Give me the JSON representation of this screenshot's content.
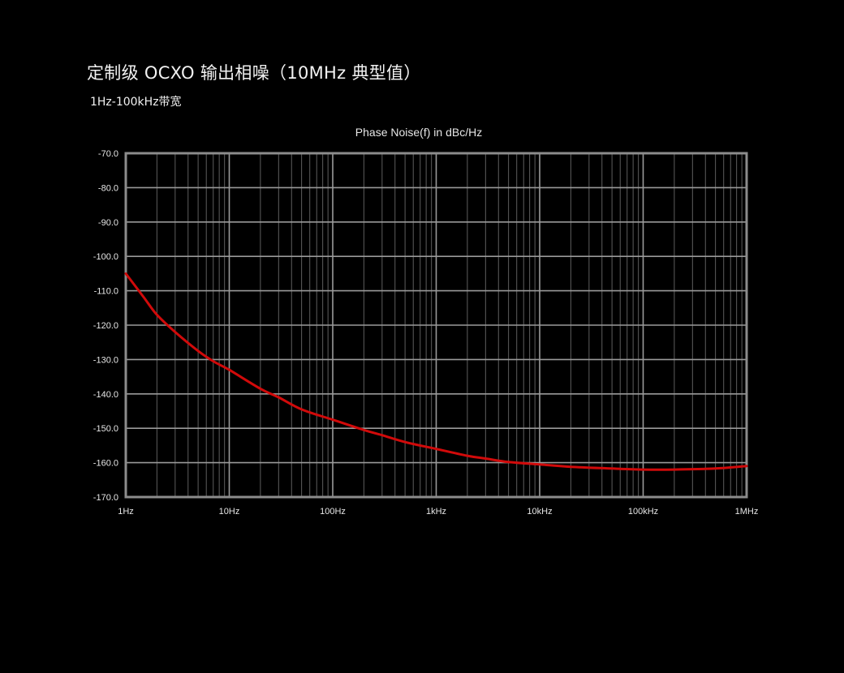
{
  "heading": "定制级 OCXO 输出相噪（10MHz 典型值）",
  "subheading": "1Hz-100kHz带宽",
  "chart_data": {
    "type": "line",
    "title": "Phase Noise(f) in dBc/Hz",
    "x_scale": "log",
    "xlim": [
      1,
      1000000
    ],
    "ylim": [
      -170,
      -70
    ],
    "x_ticks": [
      {
        "value": 1,
        "label": "1Hz"
      },
      {
        "value": 10,
        "label": "10Hz"
      },
      {
        "value": 100,
        "label": "100Hz"
      },
      {
        "value": 1000,
        "label": "1kHz"
      },
      {
        "value": 10000,
        "label": "10kHz"
      },
      {
        "value": 100000,
        "label": "100kHz"
      },
      {
        "value": 1000000,
        "label": "1MHz"
      }
    ],
    "y_ticks": [
      -70,
      -80,
      -90,
      -100,
      -110,
      -120,
      -130,
      -140,
      -150,
      -160,
      -170
    ],
    "y_tick_labels": [
      "-70.0",
      "-80.0",
      "-90.0",
      "-100.0",
      "-110.0",
      "-120.0",
      "-130.0",
      "-140.0",
      "-150.0",
      "-160.0",
      "-170.0"
    ],
    "grid": true,
    "series": [
      {
        "color": "#d10a0a",
        "points": [
          [
            1,
            -105
          ],
          [
            1.5,
            -112
          ],
          [
            2,
            -117
          ],
          [
            3,
            -122
          ],
          [
            5,
            -127.5
          ],
          [
            7,
            -130.5
          ],
          [
            10,
            -133
          ],
          [
            20,
            -138.5
          ],
          [
            30,
            -141
          ],
          [
            50,
            -144.5
          ],
          [
            100,
            -147.5
          ],
          [
            200,
            -150.5
          ],
          [
            300,
            -152
          ],
          [
            500,
            -154
          ],
          [
            1000,
            -156
          ],
          [
            2000,
            -158
          ],
          [
            3000,
            -158.8
          ],
          [
            5000,
            -159.8
          ],
          [
            10000,
            -160.5
          ],
          [
            20000,
            -161.2
          ],
          [
            50000,
            -161.7
          ],
          [
            100000,
            -162
          ],
          [
            200000,
            -162
          ],
          [
            500000,
            -161.7
          ],
          [
            1000000,
            -161
          ]
        ]
      }
    ]
  }
}
